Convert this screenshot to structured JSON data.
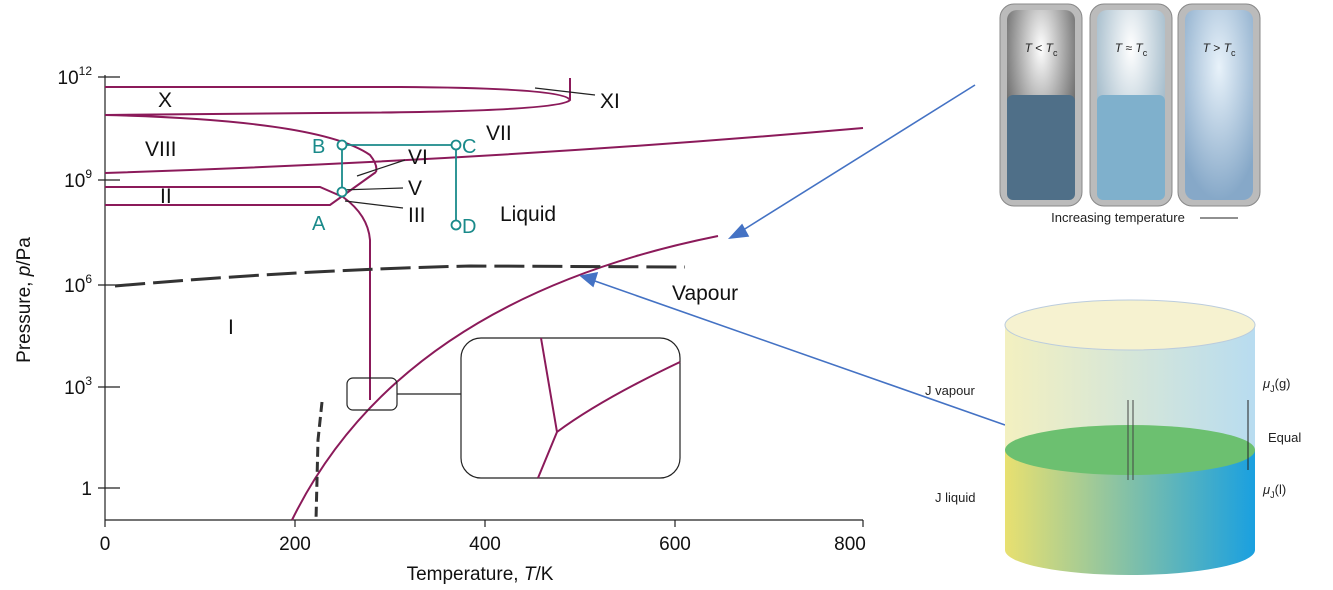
{
  "axes": {
    "y_label": [
      "Pressure, ",
      "p",
      "/Pa"
    ],
    "x_label": [
      "Temperature, ",
      "T",
      "/K"
    ],
    "y_ticks": [
      {
        "base": "10",
        "exp": "12"
      },
      {
        "base": "10",
        "exp": "9"
      },
      {
        "base": "10",
        "exp": "6"
      },
      {
        "base": "10",
        "exp": "3"
      },
      {
        "base": "1",
        "exp": ""
      }
    ],
    "x_ticks": [
      "0",
      "200",
      "400",
      "600",
      "800"
    ]
  },
  "regions": [
    "X",
    "XI",
    "VIII",
    "VII",
    "VI",
    "V",
    "II",
    "III",
    "I",
    "Liquid",
    "Vapour"
  ],
  "path_points": [
    "B",
    "C",
    "A",
    "D"
  ],
  "vials": {
    "labels": [
      [
        "T",
        " < ",
        "T",
        "c"
      ],
      [
        "T",
        " ≈ ",
        "T",
        "c"
      ],
      [
        "T",
        " > ",
        "T",
        "c"
      ]
    ],
    "caption": "Increasing temperature"
  },
  "cylinder": {
    "vapour": "J vapour",
    "liquid": "J liquid",
    "mu_g": [
      "μ",
      "J",
      "(g)"
    ],
    "equal": "Equal",
    "mu_l": [
      "μ",
      "J",
      "(l)"
    ]
  }
}
